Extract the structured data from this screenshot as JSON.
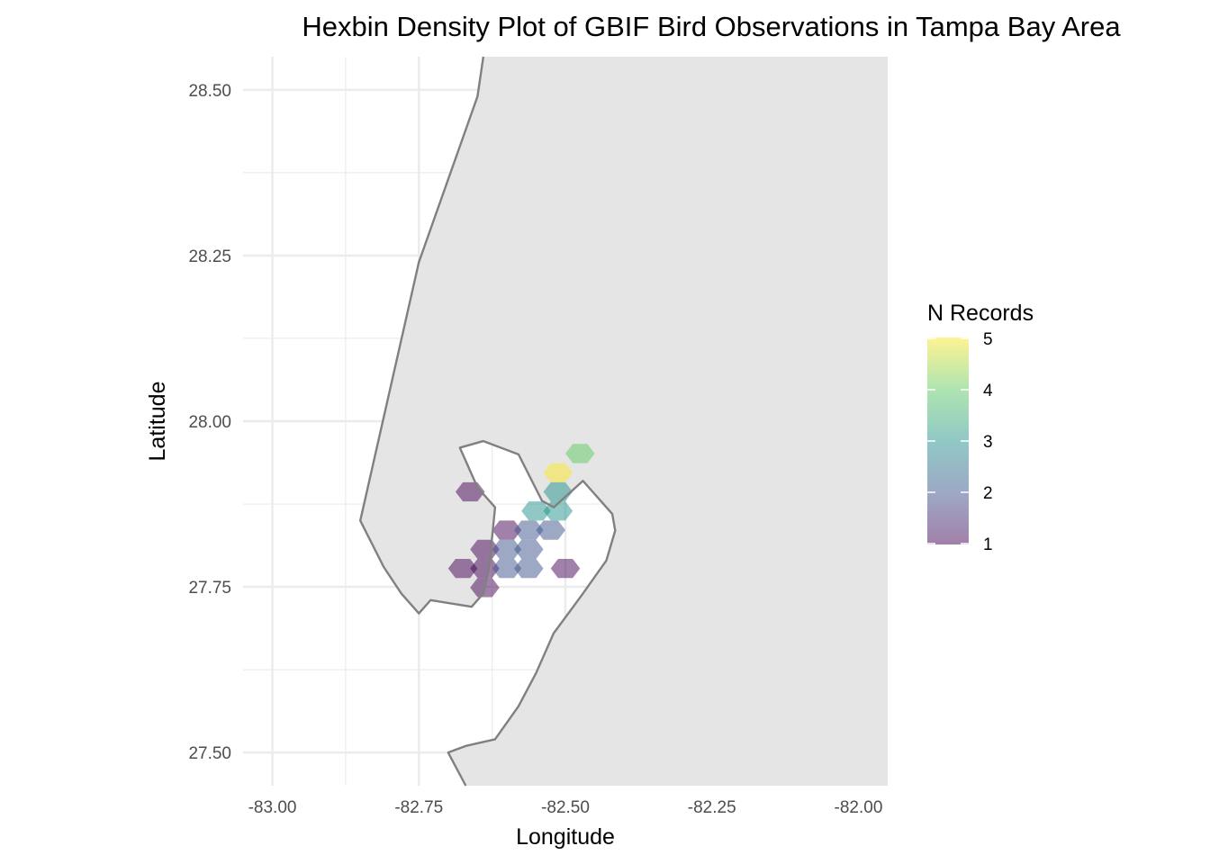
{
  "chart_data": {
    "type": "heatmap",
    "subtype": "hexbin-map",
    "title": "Hexbin Density Plot of GBIF Bird Observations in Tampa Bay Area",
    "xlabel": "Longitude",
    "ylabel": "Latitude",
    "xlim": [
      -83.05,
      -81.95
    ],
    "ylim": [
      27.45,
      28.55
    ],
    "x_ticks": [
      -83.0,
      -82.75,
      -82.5,
      -82.25,
      -82.0
    ],
    "x_tick_labels": [
      "-83.00",
      "-82.75",
      "-82.50",
      "-82.25",
      "-82.00"
    ],
    "y_ticks": [
      27.5,
      27.75,
      28.0,
      28.25,
      28.5
    ],
    "y_tick_labels": [
      "27.50",
      "27.75",
      "28.00",
      "28.25",
      "28.50"
    ],
    "grid": true,
    "background_map": {
      "land_color": "#e5e5e5",
      "outline_color": "#808080",
      "land_extent": {
        "xmin": -82.7,
        "xmax": -81.95,
        "ymin": 27.45,
        "ymax": 28.55
      },
      "coastline": [
        [
          -82.64,
          28.55
        ],
        [
          -82.65,
          28.49
        ],
        [
          -82.75,
          28.24
        ],
        [
          -82.85,
          27.85
        ],
        [
          -82.81,
          27.78
        ],
        [
          -82.78,
          27.74
        ],
        [
          -82.75,
          27.71
        ],
        [
          -82.73,
          27.73
        ],
        [
          -82.66,
          27.72
        ],
        [
          -82.64,
          27.74
        ],
        [
          -82.63,
          27.78
        ],
        [
          -82.62,
          27.87
        ],
        [
          -82.65,
          27.9
        ],
        [
          -82.68,
          27.96
        ],
        [
          -82.64,
          27.97
        ],
        [
          -82.58,
          27.95
        ],
        [
          -82.54,
          27.88
        ],
        [
          -82.52,
          27.87
        ],
        [
          -82.47,
          27.91
        ],
        [
          -82.46,
          27.9
        ],
        [
          -82.42,
          27.86
        ],
        [
          -82.415,
          27.835
        ],
        [
          -82.43,
          27.79
        ],
        [
          -82.47,
          27.74
        ],
        [
          -82.52,
          27.68
        ],
        [
          -82.55,
          27.62
        ],
        [
          -82.58,
          27.57
        ],
        [
          -82.62,
          27.52
        ],
        [
          -82.67,
          27.51
        ],
        [
          -82.7,
          27.5
        ],
        [
          -82.67,
          27.45
        ]
      ]
    },
    "legend": {
      "title": "N Records",
      "position": "right",
      "min": 1,
      "max": 5,
      "breaks": [
        1,
        2,
        3,
        4,
        5
      ],
      "colors": [
        "#440154",
        "#3b528b",
        "#21918c",
        "#5ec962",
        "#fde725"
      ],
      "opacity": 0.5
    },
    "hexbins": [
      {
        "x": -82.6625,
        "y": 27.8934,
        "count": 1
      },
      {
        "x": -82.5125,
        "y": 27.9223,
        "count": 5
      },
      {
        "x": -82.475,
        "y": 27.9512,
        "count": 4
      },
      {
        "x": -82.5125,
        "y": 27.8934,
        "count": 3
      },
      {
        "x": -82.55,
        "y": 27.8645,
        "count": 3
      },
      {
        "x": -82.5125,
        "y": 27.8645,
        "count": 3
      },
      {
        "x": -82.6,
        "y": 27.8356,
        "count": 1
      },
      {
        "x": -82.5625,
        "y": 27.8356,
        "count": 2
      },
      {
        "x": -82.525,
        "y": 27.8356,
        "count": 2
      },
      {
        "x": -82.6375,
        "y": 27.8067,
        "count": 1
      },
      {
        "x": -82.6,
        "y": 27.8067,
        "count": 2
      },
      {
        "x": -82.5625,
        "y": 27.8067,
        "count": 2
      },
      {
        "x": -82.675,
        "y": 27.7778,
        "count": 1
      },
      {
        "x": -82.6375,
        "y": 27.7778,
        "count": 1
      },
      {
        "x": -82.6,
        "y": 27.7778,
        "count": 2
      },
      {
        "x": -82.5625,
        "y": 27.7778,
        "count": 2
      },
      {
        "x": -82.5,
        "y": 27.7778,
        "count": 1
      },
      {
        "x": -82.6375,
        "y": 27.7489,
        "count": 1
      }
    ]
  }
}
